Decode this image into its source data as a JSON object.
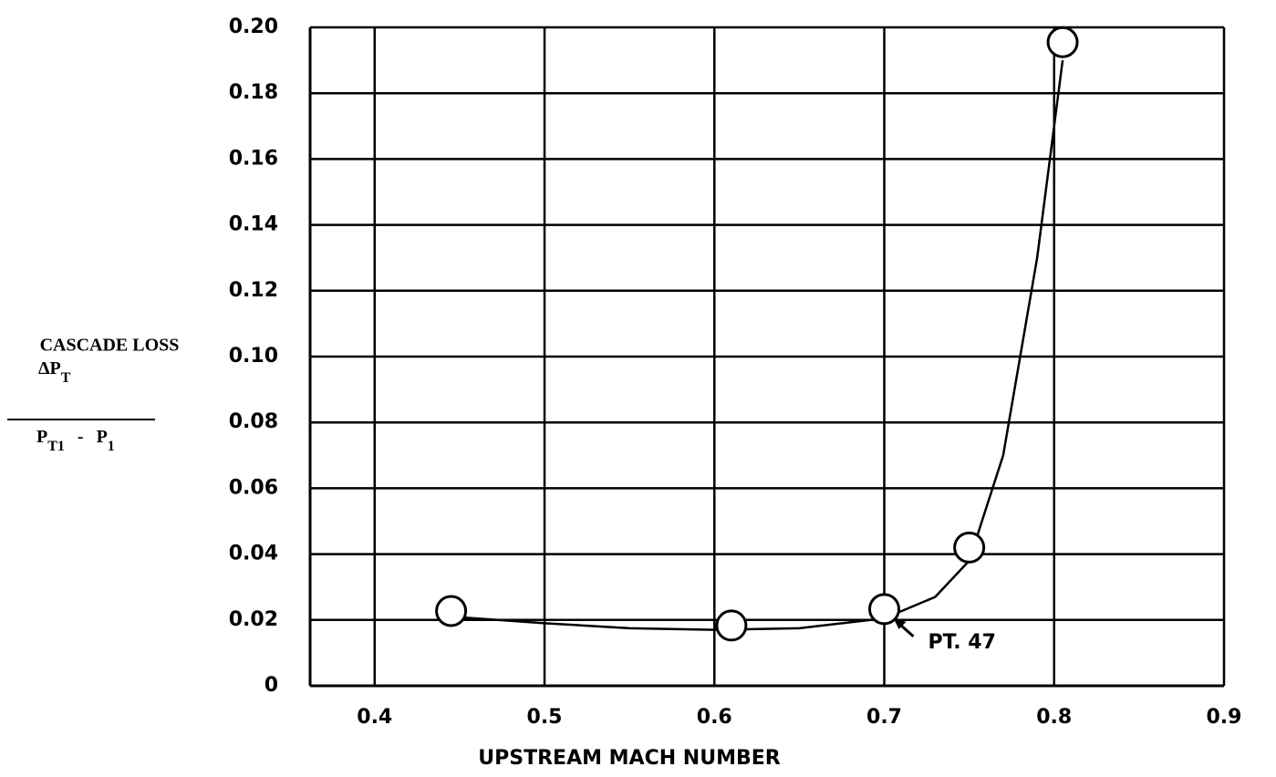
{
  "chart_data": {
    "type": "scatter",
    "xlabel": "UPSTREAM MACH NUMBER",
    "ylabel": {
      "title": "CASCADE LOSS",
      "numerator": [
        "ΔP",
        "T"
      ],
      "denominator": [
        "P",
        "T1",
        "-",
        "P",
        "1"
      ]
    },
    "series": [
      {
        "color": "#000000",
        "x": [
          0.445,
          0.61,
          0.7,
          0.75,
          0.805
        ],
        "values": [
          0.0227,
          0.0183,
          0.0233,
          0.042,
          0.1955
        ]
      }
    ],
    "curve": {
      "color": "#000000",
      "x": [
        0.445,
        0.5,
        0.55,
        0.6,
        0.65,
        0.7,
        0.73,
        0.75,
        0.77,
        0.79,
        0.805
      ],
      "y": [
        0.021,
        0.019,
        0.0175,
        0.017,
        0.0175,
        0.0205,
        0.027,
        0.038,
        0.07,
        0.13,
        0.19
      ]
    },
    "annotation": {
      "text": "PT. 47",
      "point": 2
    },
    "xlim": [
      0.362,
      0.9
    ],
    "xticks": [
      0.4,
      0.5,
      0.6,
      0.7,
      0.8,
      0.9
    ],
    "ylim": [
      0,
      0.2
    ],
    "yticks": [
      0,
      0.02,
      0.04,
      0.06,
      0.08,
      {
        "value": 0.1,
        "label": "0.10"
      },
      0.12,
      0.14,
      0.16,
      0.18,
      {
        "value": 0.2,
        "label": "0.20"
      }
    ],
    "grid": true
  }
}
